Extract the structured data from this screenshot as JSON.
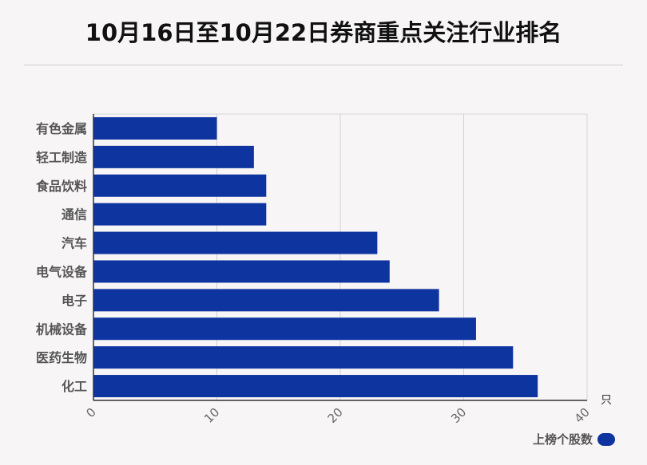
{
  "title": "10月16日至10月22日券商重点关注行业排名",
  "chart_data": {
    "type": "bar",
    "orientation": "horizontal",
    "categories": [
      "有色金属",
      "轻工制造",
      "食品饮料",
      "通信",
      "汽车",
      "电气设备",
      "电子",
      "机械设备",
      "医药生物",
      "化工"
    ],
    "series": [
      {
        "name": "上榜个股数",
        "values": [
          10,
          13,
          14,
          14,
          23,
          24,
          28,
          31,
          34,
          36
        ]
      }
    ],
    "xlim": [
      0,
      40
    ],
    "xticks": [
      "0",
      "10",
      "20",
      "30",
      "40"
    ],
    "xunit": "只",
    "grid": true,
    "legend_position": "bottom-right",
    "bar_color": "#0e34a0"
  }
}
